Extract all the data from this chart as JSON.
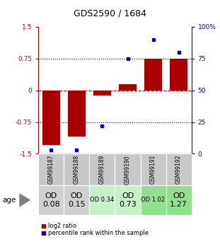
{
  "title": "GDS2590 / 1684",
  "samples": [
    "GSM99187",
    "GSM99188",
    "GSM99189",
    "GSM99190",
    "GSM99191",
    "GSM99192"
  ],
  "log2_ratio": [
    -1.3,
    -1.1,
    -0.12,
    0.15,
    0.75,
    0.75
  ],
  "percentile_rank": [
    3,
    3,
    22,
    75,
    90,
    80
  ],
  "bar_color": "#aa0000",
  "dot_color": "#0000cc",
  "ylim_left": [
    -1.5,
    1.5
  ],
  "ylim_right": [
    0,
    100
  ],
  "yticks_left": [
    -1.5,
    -0.75,
    0,
    0.75,
    1.5
  ],
  "ytick_labels_left": [
    "-1.5",
    "-0.75",
    "0",
    "0.75",
    "1.5"
  ],
  "yticks_right": [
    0,
    25,
    50,
    75,
    100
  ],
  "ytick_labels_right": [
    "0",
    "25",
    "50",
    "75",
    "100%"
  ],
  "row_labels": [
    "OD\n0.08",
    "OD\n0.15",
    "OD 0.34",
    "OD\n0.73",
    "OD 1.02",
    "OD\n1.27"
  ],
  "row_bg_colors": [
    "#d0d0d0",
    "#d0d0d0",
    "#c8f0c8",
    "#c8f0c8",
    "#90e090",
    "#90e090"
  ],
  "row_label_sizes": [
    8,
    8,
    6,
    8,
    6,
    8
  ],
  "sample_bg": "#c8c8c8",
  "age_label": "age",
  "legend_log2": "log2 ratio",
  "legend_pct": "percentile rank within the sample",
  "axis_left_color": "#cc0000",
  "axis_right_color": "#0000cc"
}
